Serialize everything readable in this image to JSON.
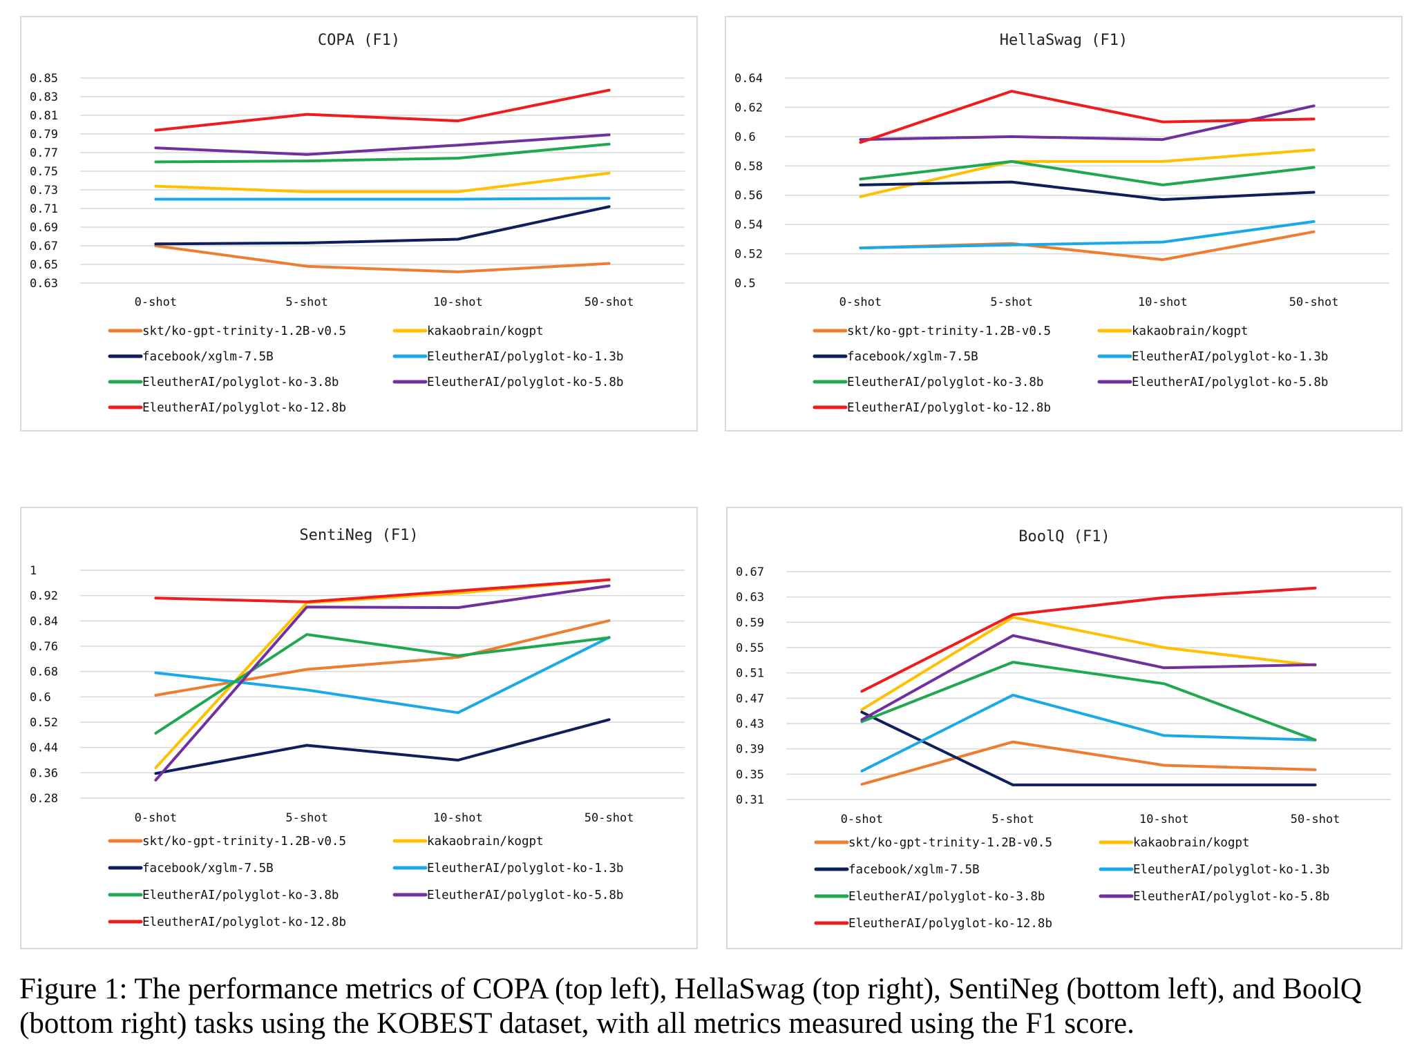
{
  "series_styles": [
    {
      "name": "skt/ko-gpt-trinity-1.2B-v0.5",
      "color": "#ed7d31"
    },
    {
      "name": "kakaobrain/kogpt",
      "color": "#ffc000"
    },
    {
      "name": "facebook/xglm-7.5B",
      "color": "#0d1f5c"
    },
    {
      "name": "EleutherAI/polyglot-ko-1.3b",
      "color": "#1aa9e8"
    },
    {
      "name": "EleutherAI/polyglot-ko-3.8b",
      "color": "#1fa84f"
    },
    {
      "name": "EleutherAI/polyglot-ko-5.8b",
      "color": "#7030a0"
    },
    {
      "name": "EleutherAI/polyglot-ko-12.8b",
      "color": "#ee1c1c"
    }
  ],
  "chart_data": [
    {
      "type": "line",
      "title": "COPA (F1)",
      "categories": [
        "0-shot",
        "5-shot",
        "10-shot",
        "50-shot"
      ],
      "ylim": [
        0.63,
        0.85
      ],
      "yticks": [
        "0.85",
        "0.83",
        "0.81",
        "0.79",
        "0.77",
        "0.75",
        "0.73",
        "0.71",
        "0.69",
        "0.67",
        "0.65",
        "0.63"
      ],
      "grid": true,
      "legend_position": "bottom",
      "series": [
        {
          "name": "skt/ko-gpt-trinity-1.2B-v0.5",
          "values": [
            0.67,
            0.648,
            0.642,
            0.651
          ]
        },
        {
          "name": "kakaobrain/kogpt",
          "values": [
            0.734,
            0.728,
            0.728,
            0.748
          ]
        },
        {
          "name": "facebook/xglm-7.5B",
          "values": [
            0.672,
            0.673,
            0.677,
            0.712
          ]
        },
        {
          "name": "EleutherAI/polyglot-ko-1.3b",
          "values": [
            0.72,
            0.72,
            0.72,
            0.721
          ]
        },
        {
          "name": "EleutherAI/polyglot-ko-3.8b",
          "values": [
            0.76,
            0.761,
            0.764,
            0.779
          ]
        },
        {
          "name": "EleutherAI/polyglot-ko-5.8b",
          "values": [
            0.775,
            0.768,
            0.778,
            0.789
          ]
        },
        {
          "name": "EleutherAI/polyglot-ko-12.8b",
          "values": [
            0.794,
            0.811,
            0.804,
            0.837
          ]
        }
      ]
    },
    {
      "type": "line",
      "title": "HellaSwag (F1)",
      "categories": [
        "0-shot",
        "5-shot",
        "10-shot",
        "50-shot"
      ],
      "ylim": [
        0.5,
        0.64
      ],
      "yticks": [
        "0.64",
        "0.62",
        "0.6",
        "0.58",
        "0.56",
        "0.54",
        "0.52",
        "0.5"
      ],
      "grid": true,
      "legend_position": "bottom",
      "series": [
        {
          "name": "skt/ko-gpt-trinity-1.2B-v0.5",
          "values": [
            0.524,
            0.527,
            0.516,
            0.535
          ]
        },
        {
          "name": "kakaobrain/kogpt",
          "values": [
            0.559,
            0.583,
            0.583,
            0.591
          ]
        },
        {
          "name": "facebook/xglm-7.5B",
          "values": [
            0.567,
            0.569,
            0.557,
            0.562
          ]
        },
        {
          "name": "EleutherAI/polyglot-ko-1.3b",
          "values": [
            0.524,
            0.526,
            0.528,
            0.542
          ]
        },
        {
          "name": "EleutherAI/polyglot-ko-3.8b",
          "values": [
            0.571,
            0.583,
            0.567,
            0.579
          ]
        },
        {
          "name": "EleutherAI/polyglot-ko-5.8b",
          "values": [
            0.598,
            0.6,
            0.598,
            0.621
          ]
        },
        {
          "name": "EleutherAI/polyglot-ko-12.8b",
          "values": [
            0.596,
            0.631,
            0.61,
            0.612
          ]
        }
      ]
    },
    {
      "type": "line",
      "title": "SentiNeg (F1)",
      "categories": [
        "0-shot",
        "5-shot",
        "10-shot",
        "50-shot"
      ],
      "ylim": [
        0.28,
        1.0
      ],
      "yticks": [
        "1",
        "0.92",
        "0.84",
        "0.76",
        "0.68",
        "0.6",
        "0.52",
        "0.44",
        "0.36",
        "0.28"
      ],
      "grid": true,
      "legend_position": "bottom",
      "series": [
        {
          "name": "skt/ko-gpt-trinity-1.2B-v0.5",
          "values": [
            0.605,
            0.687,
            0.725,
            0.841
          ]
        },
        {
          "name": "kakaobrain/kogpt",
          "values": [
            0.376,
            0.897,
            0.928,
            0.97
          ]
        },
        {
          "name": "facebook/xglm-7.5B",
          "values": [
            0.358,
            0.447,
            0.4,
            0.528
          ]
        },
        {
          "name": "EleutherAI/polyglot-ko-1.3b",
          "values": [
            0.676,
            0.622,
            0.55,
            0.788
          ]
        },
        {
          "name": "EleutherAI/polyglot-ko-3.8b",
          "values": [
            0.485,
            0.797,
            0.73,
            0.787
          ]
        },
        {
          "name": "EleutherAI/polyglot-ko-5.8b",
          "values": [
            0.337,
            0.884,
            0.882,
            0.951
          ]
        },
        {
          "name": "EleutherAI/polyglot-ko-12.8b",
          "values": [
            0.912,
            0.9,
            0.935,
            0.97
          ]
        }
      ]
    },
    {
      "type": "line",
      "title": "BoolQ (F1)",
      "categories": [
        "0-shot",
        "5-shot",
        "10-shot",
        "50-shot"
      ],
      "ylim": [
        0.31,
        0.67
      ],
      "yticks": [
        "0.67",
        "0.63",
        "0.59",
        "0.55",
        "0.51",
        "0.47",
        "0.43",
        "0.39",
        "0.35",
        "0.31"
      ],
      "grid": true,
      "legend_position": "bottom",
      "series": [
        {
          "name": "skt/ko-gpt-trinity-1.2B-v0.5",
          "values": [
            0.334,
            0.401,
            0.364,
            0.357
          ]
        },
        {
          "name": "kakaobrain/kogpt",
          "values": [
            0.452,
            0.598,
            0.55,
            0.522
          ]
        },
        {
          "name": "facebook/xglm-7.5B",
          "values": [
            0.448,
            0.333,
            0.333,
            0.333
          ]
        },
        {
          "name": "EleutherAI/polyglot-ko-1.3b",
          "values": [
            0.355,
            0.475,
            0.411,
            0.404
          ]
        },
        {
          "name": "EleutherAI/polyglot-ko-3.8b",
          "values": [
            0.433,
            0.527,
            0.493,
            0.404
          ]
        },
        {
          "name": "EleutherAI/polyglot-ko-5.8b",
          "values": [
            0.436,
            0.569,
            0.518,
            0.523
          ]
        },
        {
          "name": "EleutherAI/polyglot-ko-12.8b",
          "values": [
            0.481,
            0.602,
            0.629,
            0.644
          ]
        }
      ]
    }
  ],
  "caption": "Figure 1: The performance metrics of COPA (top left), HellaSwag (top right), SentiNeg (bottom left), and BoolQ (bottom right) tasks using the KOBEST dataset, with all metrics measured using the F1 score."
}
